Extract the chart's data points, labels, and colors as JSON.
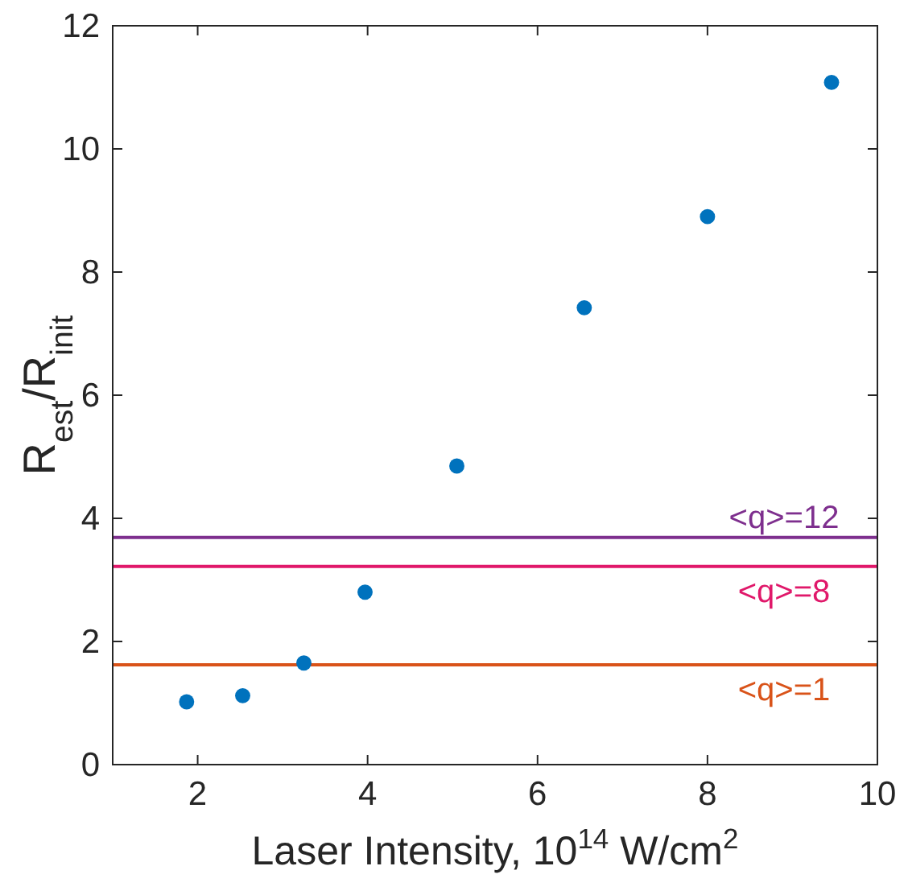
{
  "chart_data": {
    "type": "scatter",
    "xlabel": "Laser Intensity, 10$^{14}$ W/cm$^{2}$",
    "ylabel": "R$_{est}$/R$_{init}$",
    "x": [
      1.87,
      2.53,
      3.25,
      3.97,
      5.05,
      6.55,
      8.0,
      9.46
    ],
    "values": [
      1.02,
      1.12,
      1.65,
      2.8,
      4.85,
      7.42,
      8.9,
      11.08
    ],
    "color": "#0072bd",
    "marker": "circle",
    "xlim": [
      1,
      10
    ],
    "xticks": [
      2,
      4,
      6,
      8,
      10
    ],
    "ylim": [
      0,
      12
    ],
    "yticks": [
      0,
      2,
      4,
      6,
      8,
      10,
      12
    ],
    "grid": false,
    "ref_lines": [
      {
        "axis": "y",
        "value": 3.69,
        "color": "#7e2f8e"
      },
      {
        "axis": "y",
        "value": 3.22,
        "color": "#e0186a"
      },
      {
        "axis": "y",
        "value": 1.62,
        "color": "#d95319"
      }
    ],
    "annotations": [
      {
        "text": "<q>=12",
        "y": 3.69
      },
      {
        "text": "<q>=8",
        "y": 3.22
      },
      {
        "text": "<q>=1",
        "y": 1.62
      }
    ]
  }
}
